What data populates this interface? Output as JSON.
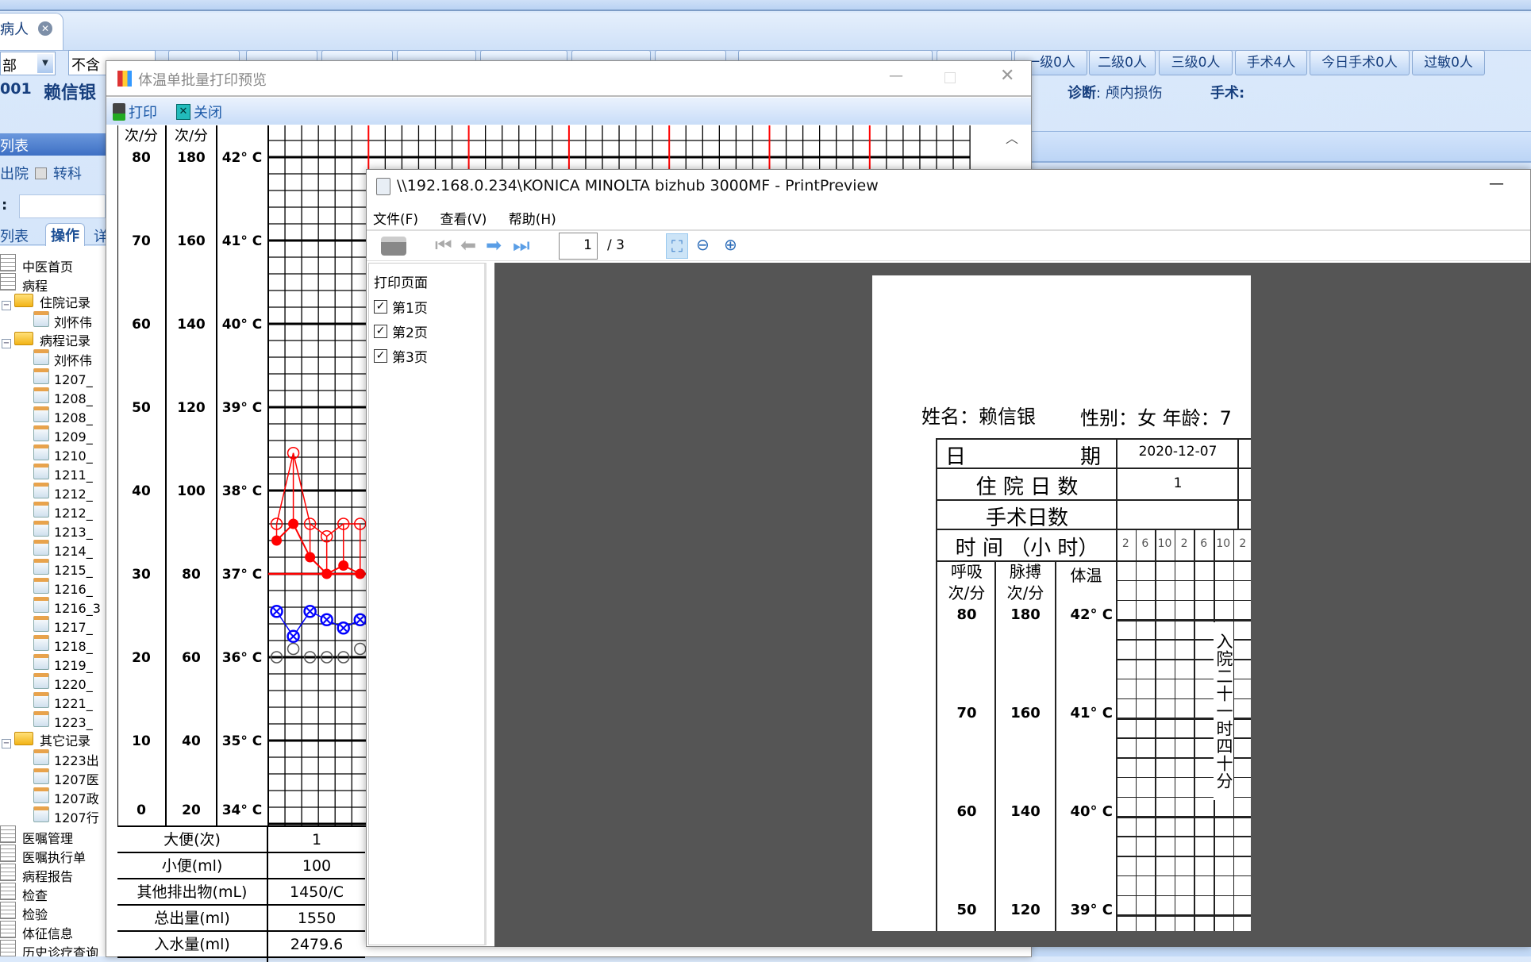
{
  "app": {
    "tab_label": "病人",
    "dept_select": "部",
    "filter_label": "不含",
    "ward_buttons": [
      "一级0人",
      "二级0人",
      "三级0人",
      "手术4人",
      "今日手术0人",
      "过敏0人"
    ],
    "patient_id": "001",
    "patient_name": "赖信银",
    "diagnosis_label": "诊断",
    "diagnosis_value": "颅内损伤",
    "surgery_label": "手术:"
  },
  "left_panel": {
    "header": "列表",
    "discharged_label": "出院",
    "transfer_label": "转科",
    "search_label": ":",
    "tabs": [
      "列表",
      "操作",
      "详"
    ],
    "tree": [
      {
        "label": "中医首页",
        "type": "root-doc",
        "level": 0
      },
      {
        "label": "病程",
        "type": "root-doc",
        "level": 0
      },
      {
        "label": "住院记录",
        "type": "folder",
        "level": 0
      },
      {
        "label": "刘怀伟",
        "type": "doc",
        "level": 1
      },
      {
        "label": "病程记录",
        "type": "folder",
        "level": 0
      },
      {
        "label": "刘怀伟",
        "type": "doc",
        "level": 1
      },
      {
        "label": "1207_",
        "type": "doc",
        "level": 1
      },
      {
        "label": "1208_",
        "type": "doc",
        "level": 1
      },
      {
        "label": "1208_",
        "type": "doc",
        "level": 1
      },
      {
        "label": "1209_",
        "type": "doc",
        "level": 1
      },
      {
        "label": "1210_",
        "type": "doc",
        "level": 1
      },
      {
        "label": "1211_",
        "type": "doc",
        "level": 1
      },
      {
        "label": "1212_",
        "type": "doc",
        "level": 1
      },
      {
        "label": "1212_",
        "type": "doc",
        "level": 1
      },
      {
        "label": "1213_",
        "type": "doc",
        "level": 1
      },
      {
        "label": "1214_",
        "type": "doc",
        "level": 1
      },
      {
        "label": "1215_",
        "type": "doc",
        "level": 1
      },
      {
        "label": "1216_",
        "type": "doc",
        "level": 1
      },
      {
        "label": "1216_3",
        "type": "doc",
        "level": 1
      },
      {
        "label": "1217_",
        "type": "doc",
        "level": 1
      },
      {
        "label": "1218_",
        "type": "doc",
        "level": 1
      },
      {
        "label": "1219_",
        "type": "doc",
        "level": 1
      },
      {
        "label": "1220_",
        "type": "doc",
        "level": 1
      },
      {
        "label": "1221_",
        "type": "doc",
        "level": 1
      },
      {
        "label": "1223_",
        "type": "doc",
        "level": 1
      },
      {
        "label": "其它记录",
        "type": "folder",
        "level": 0
      },
      {
        "label": "1223出",
        "type": "doc",
        "level": 1
      },
      {
        "label": "1207医",
        "type": "doc",
        "level": 1
      },
      {
        "label": "1207政",
        "type": "doc",
        "level": 1
      },
      {
        "label": "1207行",
        "type": "doc",
        "level": 1
      },
      {
        "label": "医嘱管理",
        "type": "root-doc",
        "level": 0
      },
      {
        "label": "医嘱执行单",
        "type": "root-doc",
        "level": 0
      },
      {
        "label": "病程报告",
        "type": "root-doc",
        "level": 0
      },
      {
        "label": "检查",
        "type": "root-doc",
        "level": 0
      },
      {
        "label": "检验",
        "type": "root-doc",
        "level": 0
      },
      {
        "label": "体征信息",
        "type": "root-doc",
        "level": 0
      },
      {
        "label": "历史诊疗查询",
        "type": "root-doc",
        "level": 0
      }
    ]
  },
  "batch_window": {
    "title": "体温单批量打印预览",
    "print_label": "打印",
    "close_label": "关闭",
    "headers": [
      "次/分",
      "次/分"
    ],
    "scale_rows": [
      {
        "resp": "80",
        "pulse": "180",
        "temp": "42° C"
      },
      {
        "resp": "70",
        "pulse": "160",
        "temp": "41° C"
      },
      {
        "resp": "60",
        "pulse": "140",
        "temp": "40° C"
      },
      {
        "resp": "50",
        "pulse": "120",
        "temp": "39° C"
      },
      {
        "resp": "40",
        "pulse": "100",
        "temp": "38° C"
      },
      {
        "resp": "30",
        "pulse": "80",
        "temp": "37° C"
      },
      {
        "resp": "20",
        "pulse": "60",
        "temp": "36° C"
      },
      {
        "resp": "10",
        "pulse": "40",
        "temp": "35° C"
      },
      {
        "resp": "0",
        "pulse": "20",
        "temp": "34° C"
      }
    ],
    "table": [
      {
        "label": "大便(次)",
        "value": "1"
      },
      {
        "label": "小便(ml)",
        "value": "100"
      },
      {
        "label": "其他排出物(mL)",
        "value": "1450/C"
      },
      {
        "label": "总出量(ml)",
        "value": "1550"
      },
      {
        "label": "入水量(ml)",
        "value": "2479.6"
      }
    ],
    "chart_data": {
      "type": "line",
      "temp_range_c": [
        34,
        42
      ],
      "pulse_range": [
        20,
        180
      ],
      "resp_range": [
        0,
        80
      ],
      "colors": {
        "temperature": "#ff0000",
        "pulse": "#ff0000",
        "axillary": "#0000ff",
        "respiration": "#000000"
      },
      "temperature_filled_red": [
        37.4,
        37.6,
        37.2,
        37.0,
        37.1,
        37.0
      ],
      "pulse_hollow_red": [
        92,
        109,
        92,
        89,
        92,
        92
      ],
      "temperature_blue_cross": [
        36.55,
        36.25,
        36.55,
        36.45,
        36.35,
        36.45
      ],
      "respiration_black_hollow": [
        20,
        21,
        20,
        20,
        20,
        21
      ],
      "reference_line_c": 37
    }
  },
  "print_preview": {
    "title": "\\\\192.168.0.234\\KONICA MINOLTA bizhub 3000MF - PrintPreview",
    "menu": [
      "文件(F)",
      "查看(V)",
      "帮助(H)"
    ],
    "page_current": "1",
    "page_total": "/ 3",
    "pages_header": "打印页面",
    "pages": [
      {
        "label": "第1页",
        "checked": true
      },
      {
        "label": "第2页",
        "checked": true
      },
      {
        "label": "第3页",
        "checked": true
      }
    ],
    "sheet": {
      "name_line": "姓名：赖信银",
      "sex_age_line": "性别：女 年龄：7",
      "date_label": [
        "日",
        "期"
      ],
      "date_value": "2020-12-07",
      "stay_days_label": "住 院 日 数",
      "stay_days_value": "1",
      "surgery_days_label": "手术日数",
      "time_label": "时 间 （小 时）",
      "hours": [
        "2",
        "6",
        "10",
        "2",
        "6",
        "10",
        "2"
      ],
      "resp_header": [
        "呼吸",
        "次/分"
      ],
      "pulse_header": [
        "脉搏",
        "次/分"
      ],
      "temp_header": "体温",
      "scale_rows": [
        {
          "resp": "80",
          "pulse": "180",
          "temp": "42° C"
        },
        {
          "resp": "70",
          "pulse": "160",
          "temp": "41° C"
        },
        {
          "resp": "60",
          "pulse": "140",
          "temp": "40° C"
        },
        {
          "resp": "50",
          "pulse": "120",
          "temp": "39° C"
        }
      ],
      "admission_note": "入院二十一时四十分"
    }
  }
}
